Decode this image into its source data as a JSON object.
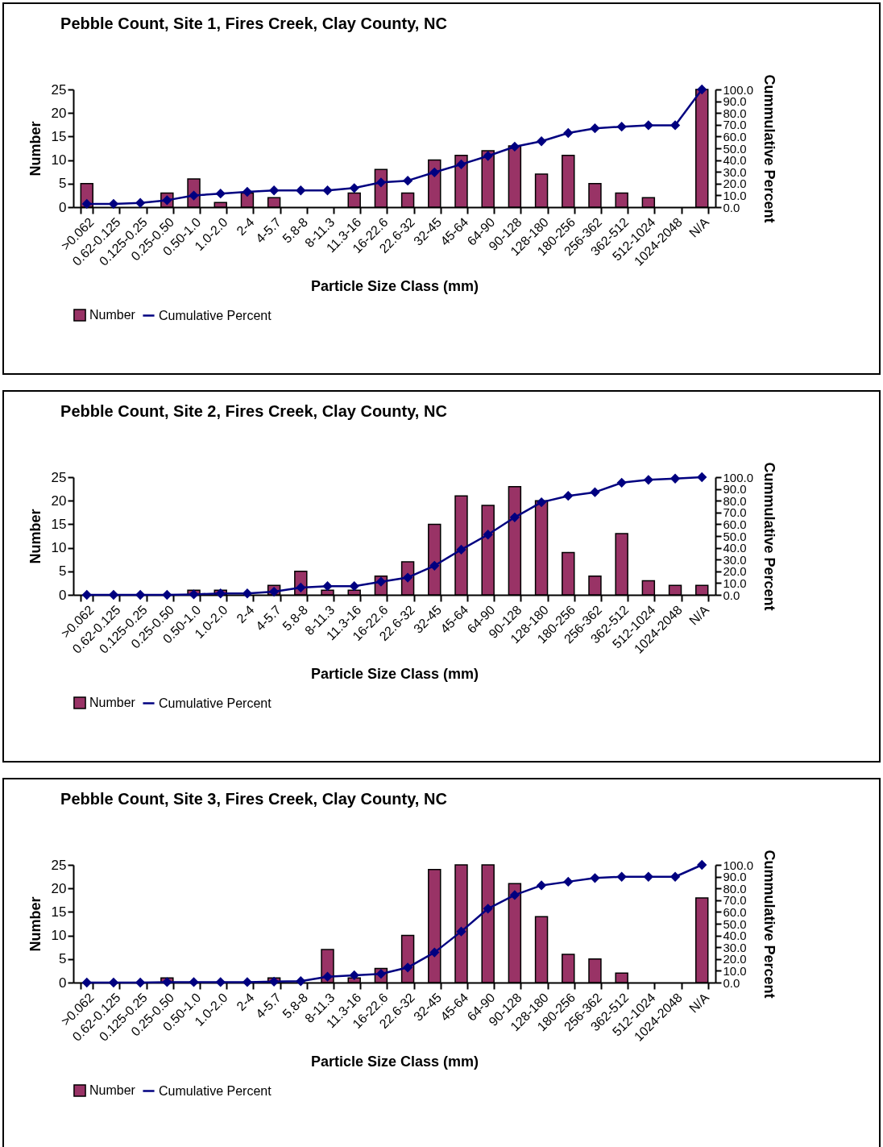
{
  "chart_data": [
    {
      "type": "bar",
      "title": "Pebble Count, Site 1, Fires Creek, Clay County, NC",
      "xlabel": "Particle Size Class  (mm)",
      "ylabel": "Number",
      "y2label": "Cummulative Percent",
      "categories": [
        ">0.062",
        "0.62-0.125",
        "0.125-0.25",
        "0.25-0.50",
        "0.50-1.0",
        "1.0-2.0",
        "2-4",
        "4-5.7",
        "5.8-8",
        "8-11.3",
        "11.3-16",
        "16-22.6",
        "22.6-32",
        "32-45",
        "45-64",
        "64-90",
        "90-128",
        "128-180",
        "180-256",
        "256-362",
        "362-512",
        "512-1024",
        "1024-2048",
        "N/A"
      ],
      "series": [
        {
          "name": "Number",
          "color": "#993366",
          "values": [
            5,
            0,
            0,
            3,
            6,
            1,
            3,
            2,
            0,
            0,
            3,
            8,
            3,
            10,
            11,
            12,
            13,
            7,
            11,
            5,
            3,
            2,
            0,
            25
          ]
        },
        {
          "name": "Cumulative Percent",
          "type": "line",
          "axis": "y2",
          "color": "#000080",
          "values": [
            2.8,
            2.8,
            3.6,
            5.9,
            9.9,
            11.5,
            13,
            14.2,
            14.2,
            14.2,
            16.2,
            21,
            22.5,
            29.6,
            36.4,
            43.5,
            51.4,
            56,
            63,
            67,
            68.4,
            69.6,
            69.6,
            100
          ]
        }
      ],
      "ylim": [
        0,
        25
      ],
      "yticks": [
        0,
        5,
        10,
        15,
        20,
        25
      ],
      "y2lim": [
        0,
        100
      ],
      "y2ticks": [
        {
          "value": 0,
          "label": "0.0"
        },
        {
          "value": 10,
          "label": "10.0"
        },
        {
          "value": 20,
          "label": "20.0"
        },
        {
          "value": 30,
          "label": "30.0"
        },
        {
          "value": 40,
          "label": "40.0"
        },
        {
          "value": 50,
          "label": "50.0"
        },
        {
          "value": 60,
          "label": "60.0"
        },
        {
          "value": 70,
          "label": "70.0"
        },
        {
          "value": 80,
          "label": "80.0"
        },
        {
          "value": 90,
          "label": "90.0"
        },
        {
          "value": 100,
          "label": "100.0"
        }
      ],
      "legend": "bottom",
      "marker": "diamond"
    },
    {
      "type": "bar",
      "title": "Pebble Count, Site 2, Fires Creek, Clay County, NC",
      "xlabel": "Particle Size Class  (mm)",
      "ylabel": "Number",
      "y2label": "Cummulative Percent",
      "categories": [
        ">0.062",
        "0.62-0.125",
        "0.125-0.25",
        "0.25-0.50",
        "0.50-1.0",
        "1.0-2.0",
        "2-4",
        "4-5.7",
        "5.8-8",
        "8-11.3",
        "11.3-16",
        "16-22.6",
        "22.6-32",
        "32-45",
        "45-64",
        "64-90",
        "90-128",
        "128-180",
        "180-256",
        "256-362",
        "362-512",
        "512-1024",
        "1024-2048",
        "N/A"
      ],
      "series": [
        {
          "name": "Number",
          "color": "#993366",
          "values": [
            0,
            0,
            0,
            0,
            1,
            1,
            0,
            2,
            5,
            1,
            1,
            4,
            7,
            15,
            21,
            19,
            23,
            20,
            9,
            4,
            13,
            3,
            2,
            2
          ]
        },
        {
          "name": "Cumulative Percent",
          "type": "line",
          "axis": "y2",
          "color": "#000080",
          "values": [
            0,
            0,
            0,
            0,
            0.4,
            1.2,
            1.2,
            2.7,
            6.2,
            7.4,
            7.4,
            11.2,
            14.7,
            24.8,
            38.4,
            51.2,
            65.9,
            78.7,
            84.1,
            87.2,
            95.3,
            97.7,
            98.8,
            100
          ]
        }
      ],
      "ylim": [
        0,
        25
      ],
      "yticks": [
        0,
        5,
        10,
        15,
        20,
        25
      ],
      "y2lim": [
        0,
        100
      ],
      "y2ticks": [
        {
          "value": 0,
          "label": "0.0"
        },
        {
          "value": 10,
          "label": "10.0"
        },
        {
          "value": 20,
          "label": "20.0"
        },
        {
          "value": 30,
          "label": "30.0"
        },
        {
          "value": 40,
          "label": "40.0"
        },
        {
          "value": 50,
          "label": "50.0"
        },
        {
          "value": 60,
          "label": "60.0"
        },
        {
          "value": 70,
          "label": "70.0"
        },
        {
          "value": 80,
          "label": "80.0"
        },
        {
          "value": 90,
          "label": "90.0"
        },
        {
          "value": 100,
          "label": "100.0"
        }
      ],
      "legend": "bottom",
      "marker": "diamond"
    },
    {
      "type": "bar",
      "title": "Pebble Count, Site 3, Fires Creek, Clay County, NC",
      "xlabel": "Particle Size Class  (mm)",
      "ylabel": "Number",
      "y2label": "Cummulative Percent",
      "categories": [
        ">0.062",
        "0.62-0.125",
        "0.125-0.25",
        "0.25-0.50",
        "0.50-1.0",
        "1.0-2.0",
        "2-4",
        "4-5.7",
        "5.8-8",
        "8-11.3",
        "11.3-16",
        "16-22.6",
        "22.6-32",
        "32-45",
        "45-64",
        "64-90",
        "90-128",
        "128-180",
        "180-256",
        "256-362",
        "362-512",
        "512-1024",
        "1024-2048",
        "N/A"
      ],
      "series": [
        {
          "name": "Number",
          "color": "#993366",
          "values": [
            0,
            0,
            0,
            1,
            0,
            0,
            0,
            1,
            0,
            7,
            1,
            3,
            10,
            24,
            25,
            25,
            21,
            14,
            6,
            5,
            2,
            0,
            0,
            18
          ]
        },
        {
          "name": "Cumulative Percent",
          "type": "line",
          "axis": "y2",
          "color": "#000080",
          "values": [
            0,
            0,
            0,
            0.4,
            0.4,
            0.4,
            0.4,
            0.8,
            1.2,
            5,
            6.2,
            7.4,
            12.8,
            25.6,
            43.4,
            62.8,
            74.4,
            82.6,
            85.7,
            88.8,
            89.9,
            89.9,
            89.9,
            100
          ]
        }
      ],
      "ylim": [
        0,
        25
      ],
      "yticks": [
        0,
        5,
        10,
        15,
        20,
        25
      ],
      "y2lim": [
        0,
        100
      ],
      "y2ticks": [
        {
          "value": 0,
          "label": "0.0"
        },
        {
          "value": 10,
          "label": "10.0"
        },
        {
          "value": 20,
          "label": "20.0"
        },
        {
          "value": 30,
          "label": "30.0"
        },
        {
          "value": 40,
          "label": "40.0"
        },
        {
          "value": 50,
          "label": "50.0"
        },
        {
          "value": 60,
          "label": "60.0"
        },
        {
          "value": 70,
          "label": "70.0"
        },
        {
          "value": 80,
          "label": "80.0"
        },
        {
          "value": 90,
          "label": "90.0"
        },
        {
          "value": 100,
          "label": "100.0"
        }
      ],
      "legend": "bottom",
      "marker": "diamond"
    }
  ]
}
